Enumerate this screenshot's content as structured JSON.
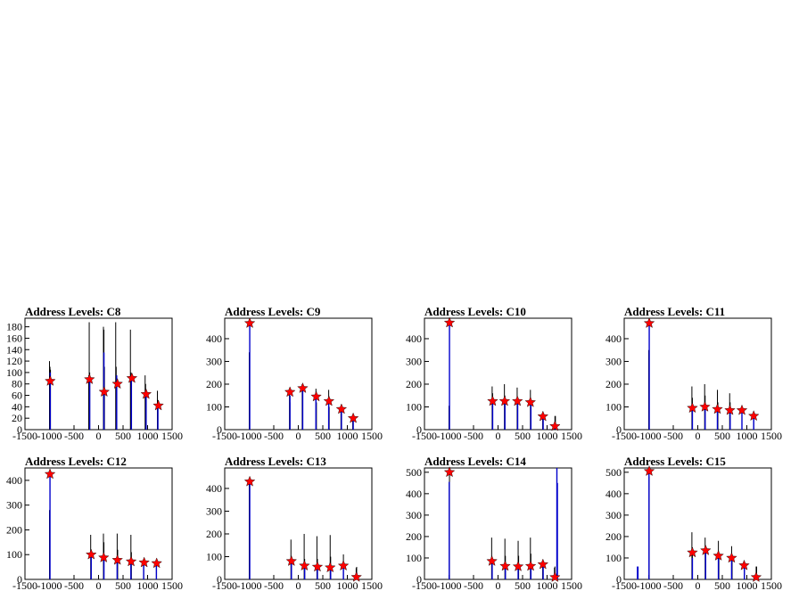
{
  "chart_data": [
    {
      "type": "histogram",
      "title": "Address Levels: C8",
      "xlim": [
        -1500,
        1500
      ],
      "ylim": [
        0,
        195
      ],
      "x_ticks": [
        -1500,
        -1000,
        -500,
        0,
        500,
        1000,
        1500
      ],
      "y_ticks": [
        0,
        20,
        40,
        60,
        80,
        100,
        120,
        140,
        160,
        180
      ],
      "black_spikes": [
        [
          -1000,
          120
        ],
        [
          -990,
          110
        ],
        [
          -980,
          105
        ],
        [
          -200,
          95
        ],
        [
          -190,
          188
        ],
        [
          -180,
          100
        ],
        [
          100,
          180
        ],
        [
          110,
          175
        ],
        [
          120,
          110
        ],
        [
          350,
          188
        ],
        [
          360,
          110
        ],
        [
          650,
          175
        ],
        [
          660,
          100
        ],
        [
          950,
          95
        ],
        [
          960,
          80
        ],
        [
          1200,
          68
        ],
        [
          1210,
          52
        ]
      ],
      "blue_spikes": [
        [
          -985,
          100
        ],
        [
          -180,
          90
        ],
        [
          110,
          135
        ],
        [
          370,
          95
        ],
        [
          670,
          90
        ],
        [
          970,
          60
        ],
        [
          1210,
          45
        ]
      ],
      "peaks": [
        [
          -985,
          85
        ],
        [
          -185,
          88
        ],
        [
          115,
          66
        ],
        [
          385,
          80
        ],
        [
          680,
          90
        ],
        [
          970,
          62
        ],
        [
          1220,
          42
        ]
      ]
    },
    {
      "type": "histogram",
      "title": "Address Levels: C9",
      "xlim": [
        -1500,
        1500
      ],
      "ylim": [
        0,
        490
      ],
      "x_ticks": [
        -1500,
        -1000,
        -500,
        0,
        500,
        1000,
        1500
      ],
      "y_ticks": [
        0,
        100,
        200,
        300,
        400
      ],
      "black_spikes": [
        [
          -1000,
          340
        ],
        [
          -180,
          175
        ],
        [
          -170,
          120
        ],
        [
          80,
          200
        ],
        [
          90,
          140
        ],
        [
          360,
          180
        ],
        [
          370,
          120
        ],
        [
          620,
          175
        ],
        [
          630,
          100
        ],
        [
          870,
          100
        ],
        [
          1110,
          60
        ]
      ],
      "blue_spikes": [
        [
          -990,
          470
        ],
        [
          -170,
          150
        ],
        [
          90,
          180
        ],
        [
          360,
          140
        ],
        [
          620,
          120
        ],
        [
          880,
          85
        ],
        [
          1120,
          50
        ]
      ],
      "peaks": [
        [
          -990,
          468
        ],
        [
          -170,
          165
        ],
        [
          90,
          182
        ],
        [
          365,
          145
        ],
        [
          625,
          125
        ],
        [
          880,
          90
        ],
        [
          1120,
          50
        ]
      ]
    },
    {
      "type": "histogram",
      "title": "Address Levels: C10",
      "xlim": [
        -1500,
        1500
      ],
      "ylim": [
        0,
        490
      ],
      "x_ticks": [
        -1500,
        -1000,
        -500,
        0,
        500,
        1000,
        1500
      ],
      "y_ticks": [
        0,
        100,
        200,
        300,
        400
      ],
      "black_spikes": [
        [
          -1000,
          105
        ],
        [
          -120,
          190
        ],
        [
          -110,
          160
        ],
        [
          130,
          200
        ],
        [
          140,
          150
        ],
        [
          390,
          185
        ],
        [
          400,
          140
        ],
        [
          660,
          175
        ],
        [
          670,
          120
        ],
        [
          910,
          75
        ],
        [
          1160,
          60
        ],
        [
          1170,
          60
        ]
      ],
      "blue_spikes": [
        [
          -990,
          470
        ],
        [
          -110,
          130
        ],
        [
          140,
          130
        ],
        [
          400,
          125
        ],
        [
          670,
          115
        ],
        [
          920,
          55
        ],
        [
          1170,
          20
        ]
      ],
      "peaks": [
        [
          -990,
          470
        ],
        [
          -110,
          125
        ],
        [
          135,
          125
        ],
        [
          395,
          125
        ],
        [
          660,
          120
        ],
        [
          915,
          58
        ],
        [
          1160,
          15
        ]
      ]
    },
    {
      "type": "histogram",
      "title": "Address Levels: C11",
      "xlim": [
        -1500,
        1500
      ],
      "ylim": [
        0,
        490
      ],
      "x_ticks": [
        -1500,
        -1000,
        -500,
        0,
        500,
        1000,
        1500
      ],
      "y_ticks": [
        0,
        100,
        200,
        300,
        400
      ],
      "black_spikes": [
        [
          -1000,
          350
        ],
        [
          -120,
          190
        ],
        [
          -110,
          140
        ],
        [
          140,
          200
        ],
        [
          150,
          150
        ],
        [
          400,
          175
        ],
        [
          410,
          120
        ],
        [
          650,
          160
        ],
        [
          660,
          120
        ],
        [
          900,
          90
        ],
        [
          1140,
          70
        ]
      ],
      "blue_spikes": [
        [
          -990,
          470
        ],
        [
          -110,
          95
        ],
        [
          150,
          100
        ],
        [
          400,
          95
        ],
        [
          660,
          90
        ],
        [
          900,
          80
        ],
        [
          1140,
          55
        ]
      ],
      "peaks": [
        [
          -990,
          468
        ],
        [
          -110,
          95
        ],
        [
          145,
          100
        ],
        [
          400,
          90
        ],
        [
          655,
          85
        ],
        [
          900,
          85
        ],
        [
          1140,
          60
        ]
      ]
    },
    {
      "type": "histogram",
      "title": "Address Levels: C12",
      "xlim": [
        -1500,
        1500
      ],
      "ylim": [
        0,
        450
      ],
      "x_ticks": [
        -1500,
        -1000,
        -500,
        0,
        500,
        1000,
        1500
      ],
      "y_ticks": [
        0,
        100,
        200,
        300,
        400
      ],
      "black_spikes": [
        [
          -1000,
          280
        ],
        [
          -160,
          180
        ],
        [
          -150,
          120
        ],
        [
          100,
          185
        ],
        [
          110,
          150
        ],
        [
          380,
          185
        ],
        [
          390,
          120
        ],
        [
          660,
          180
        ],
        [
          670,
          110
        ],
        [
          920,
          80
        ],
        [
          1180,
          60
        ]
      ],
      "blue_spikes": [
        [
          -990,
          425
        ],
        [
          -150,
          105
        ],
        [
          110,
          90
        ],
        [
          380,
          80
        ],
        [
          660,
          70
        ],
        [
          920,
          65
        ],
        [
          1180,
          60
        ]
      ],
      "peaks": [
        [
          -990,
          425
        ],
        [
          -150,
          100
        ],
        [
          105,
          88
        ],
        [
          385,
          78
        ],
        [
          665,
          72
        ],
        [
          930,
          68
        ],
        [
          1185,
          65
        ]
      ]
    },
    {
      "type": "histogram",
      "title": "Address Levels: C13",
      "xlim": [
        -1500,
        1500
      ],
      "ylim": [
        0,
        490
      ],
      "x_ticks": [
        -1500,
        -1000,
        -500,
        0,
        500,
        1000,
        1500
      ],
      "y_ticks": [
        0,
        100,
        200,
        300,
        400
      ],
      "black_spikes": [
        [
          -1000,
          420
        ],
        [
          -150,
          175
        ],
        [
          -140,
          100
        ],
        [
          120,
          200
        ],
        [
          130,
          90
        ],
        [
          380,
          190
        ],
        [
          390,
          90
        ],
        [
          650,
          195
        ],
        [
          660,
          100
        ],
        [
          920,
          110
        ],
        [
          1180,
          50
        ],
        [
          1190,
          55
        ]
      ],
      "blue_spikes": [
        [
          -990,
          430
        ],
        [
          -140,
          80
        ],
        [
          130,
          60
        ],
        [
          390,
          60
        ],
        [
          660,
          50
        ],
        [
          920,
          55
        ],
        [
          1190,
          30
        ]
      ],
      "peaks": [
        [
          -990,
          430
        ],
        [
          -140,
          80
        ],
        [
          125,
          60
        ],
        [
          390,
          55
        ],
        [
          650,
          52
        ],
        [
          920,
          60
        ],
        [
          1185,
          10
        ]
      ]
    },
    {
      "type": "histogram",
      "title": "Address Levels: C14",
      "xlim": [
        -1500,
        1500
      ],
      "ylim": [
        0,
        520
      ],
      "x_ticks": [
        -1500,
        -1000,
        -500,
        0,
        500,
        1000,
        1500
      ],
      "y_ticks": [
        0,
        100,
        200,
        300,
        400,
        500
      ],
      "black_spikes": [
        [
          -990,
          490
        ],
        [
          -130,
          195
        ],
        [
          -120,
          100
        ],
        [
          140,
          190
        ],
        [
          150,
          110
        ],
        [
          410,
          180
        ],
        [
          420,
          110
        ],
        [
          660,
          195
        ],
        [
          670,
          120
        ],
        [
          910,
          80
        ],
        [
          1150,
          55
        ],
        [
          1160,
          60
        ]
      ],
      "blue_spikes": [
        [
          -995,
          455
        ],
        [
          -120,
          90
        ],
        [
          150,
          60
        ],
        [
          410,
          60
        ],
        [
          670,
          60
        ],
        [
          920,
          70
        ],
        [
          1160,
          25
        ],
        [
          1200,
          520
        ],
        [
          1210,
          450
        ]
      ],
      "peaks": [
        [
          -990,
          500
        ],
        [
          -125,
          85
        ],
        [
          145,
          62
        ],
        [
          410,
          60
        ],
        [
          665,
          62
        ],
        [
          915,
          70
        ],
        [
          1160,
          10
        ]
      ]
    },
    {
      "type": "histogram",
      "title": "Address Levels: C15",
      "xlim": [
        -1500,
        1500
      ],
      "ylim": [
        0,
        520
      ],
      "x_ticks": [
        -1500,
        -1000,
        -500,
        0,
        500,
        1000,
        1500
      ],
      "y_ticks": [
        0,
        100,
        200,
        300,
        400,
        500
      ],
      "black_spikes": [
        [
          -990,
          480
        ],
        [
          -120,
          220
        ],
        [
          -110,
          150
        ],
        [
          150,
          195
        ],
        [
          160,
          130
        ],
        [
          420,
          180
        ],
        [
          430,
          120
        ],
        [
          690,
          155
        ],
        [
          700,
          110
        ],
        [
          950,
          80
        ],
        [
          1190,
          60
        ],
        [
          1200,
          60
        ]
      ],
      "blue_spikes": [
        [
          -1230,
          60
        ],
        [
          -1220,
          60
        ],
        [
          -995,
          500
        ],
        [
          -110,
          100
        ],
        [
          160,
          130
        ],
        [
          420,
          110
        ],
        [
          690,
          100
        ],
        [
          950,
          65
        ],
        [
          1190,
          20
        ]
      ],
      "peaks": [
        [
          -990,
          505
        ],
        [
          -110,
          125
        ],
        [
          160,
          135
        ],
        [
          420,
          110
        ],
        [
          690,
          100
        ],
        [
          945,
          65
        ],
        [
          1190,
          10
        ]
      ]
    }
  ]
}
